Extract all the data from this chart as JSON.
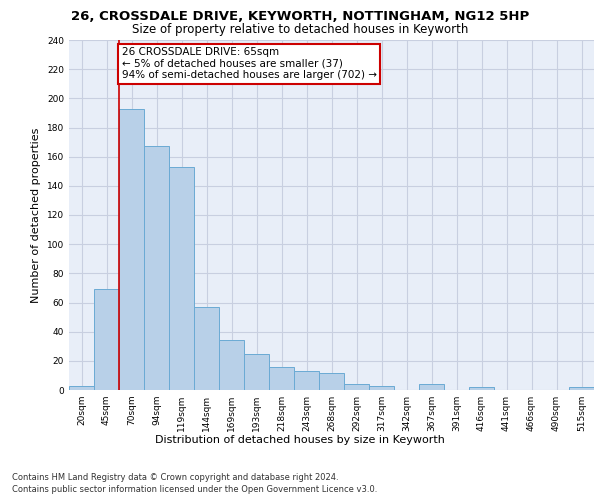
{
  "title1": "26, CROSSDALE DRIVE, KEYWORTH, NOTTINGHAM, NG12 5HP",
  "title2": "Size of property relative to detached houses in Keyworth",
  "xlabel": "Distribution of detached houses by size in Keyworth",
  "ylabel": "Number of detached properties",
  "categories": [
    "20sqm",
    "45sqm",
    "70sqm",
    "94sqm",
    "119sqm",
    "144sqm",
    "169sqm",
    "193sqm",
    "218sqm",
    "243sqm",
    "268sqm",
    "292sqm",
    "317sqm",
    "342sqm",
    "367sqm",
    "391sqm",
    "416sqm",
    "441sqm",
    "466sqm",
    "490sqm",
    "515sqm"
  ],
  "values": [
    3,
    69,
    193,
    167,
    153,
    57,
    34,
    25,
    16,
    13,
    12,
    4,
    3,
    0,
    4,
    0,
    2,
    0,
    0,
    0,
    2
  ],
  "bar_color": "#b8d0e8",
  "bar_edge_color": "#6aaad4",
  "vline_x": 1.5,
  "vline_color": "#cc0000",
  "annotation_text": "26 CROSSDALE DRIVE: 65sqm\n← 5% of detached houses are smaller (37)\n94% of semi-detached houses are larger (702) →",
  "annotation_box_color": "#ffffff",
  "annotation_box_edge": "#cc0000",
  "footer1": "Contains HM Land Registry data © Crown copyright and database right 2024.",
  "footer2": "Contains public sector information licensed under the Open Government Licence v3.0.",
  "bg_color": "#e8eef8",
  "grid_color": "#c8cfe0",
  "ylim": [
    0,
    240
  ],
  "title1_fontsize": 9.5,
  "title2_fontsize": 8.5,
  "ylabel_fontsize": 8,
  "xlabel_fontsize": 8,
  "tick_fontsize": 6.5,
  "footer_fontsize": 6,
  "annot_fontsize": 7.5
}
